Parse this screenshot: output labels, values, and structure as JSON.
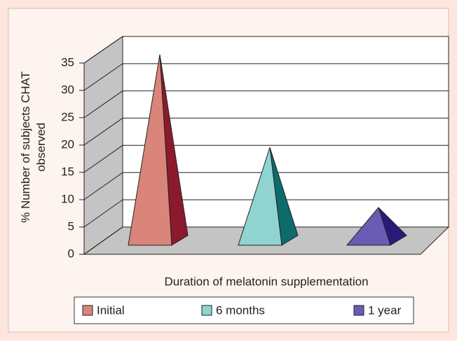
{
  "chart_data": {
    "type": "bar",
    "categories": [
      "Initial",
      "6 months",
      "1 year"
    ],
    "values": [
      34,
      17,
      6
    ],
    "colors": [
      "#d9857a",
      "#8fd4d0",
      "#6a5bb5"
    ],
    "side_colors": [
      "#8b1a2e",
      "#0d6b6b",
      "#2a1a78"
    ],
    "ylabel": "% Number of subjects CHAT observed",
    "xlabel": "Duration of melatonin supplementation",
    "ylim": [
      0,
      35
    ],
    "yticks": [
      0,
      5,
      10,
      15,
      20,
      25,
      30,
      35
    ],
    "grid": true
  }
}
